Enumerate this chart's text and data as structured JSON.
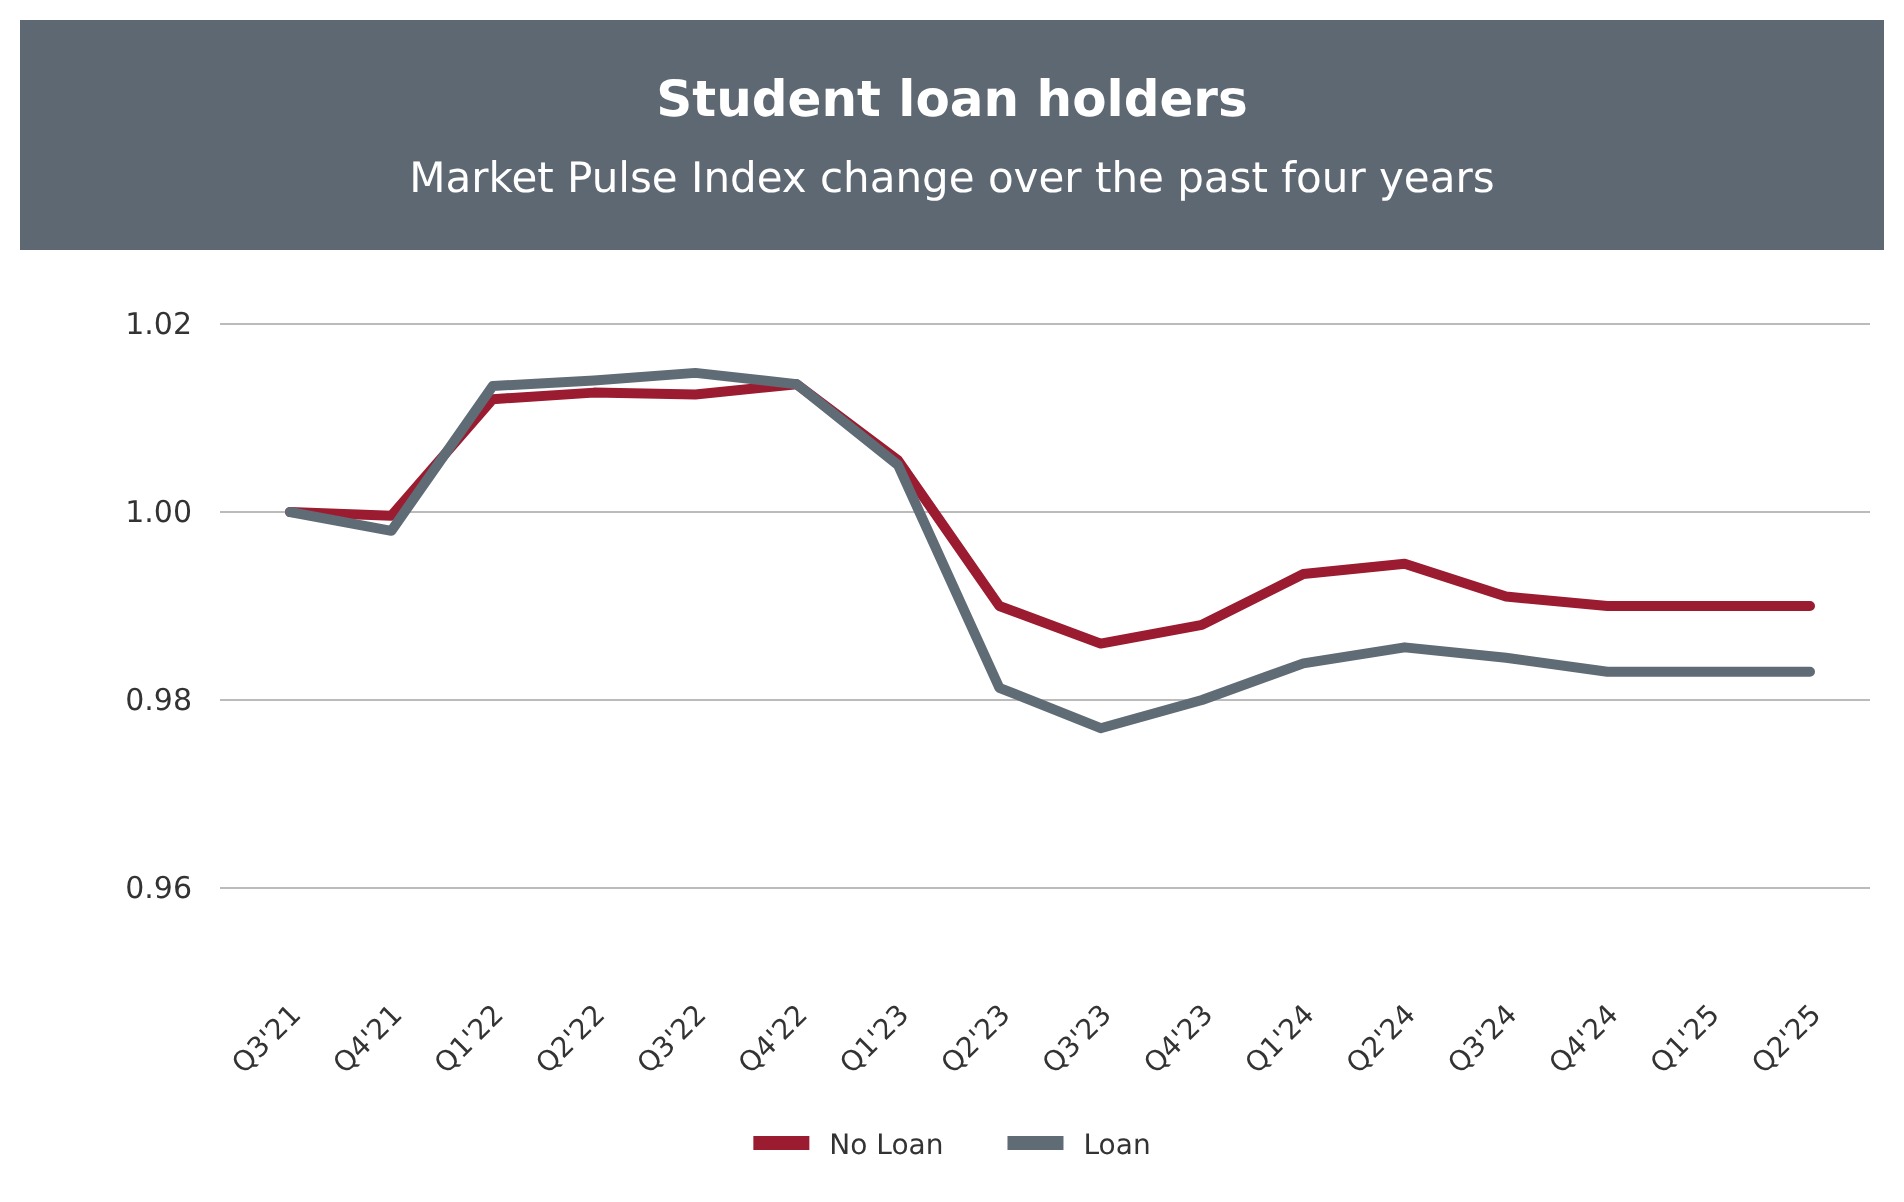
{
  "chart_data": {
    "type": "line",
    "title": "Student loan holders",
    "subtitle": "Market Pulse Index change over the past four years",
    "categories": [
      "Q3'21",
      "Q4'21",
      "Q1'22",
      "Q2'22",
      "Q3'22",
      "Q4'22",
      "Q1'23",
      "Q2'23",
      "Q3'23",
      "Q4'23",
      "Q1'24",
      "Q2'24",
      "Q3'24",
      "Q4'24",
      "Q1'25",
      "Q2'25"
    ],
    "series": [
      {
        "name": "No Loan",
        "color": "#9b1b30",
        "values": [
          1.0,
          0.9996,
          1.012,
          1.0127,
          1.0125,
          1.0136,
          1.0055,
          0.99,
          0.986,
          0.988,
          0.9934,
          0.9945,
          0.991,
          0.99,
          0.99,
          0.99
        ]
      },
      {
        "name": "Loan",
        "color": "#5f6b75",
        "values": [
          1.0,
          0.998,
          1.0134,
          1.014,
          1.0148,
          1.0136,
          1.005,
          0.9813,
          0.977,
          0.98,
          0.9839,
          0.9856,
          0.9845,
          0.983,
          0.983,
          0.983
        ]
      }
    ],
    "ylim": [
      0.96,
      1.02
    ],
    "yticks": [
      {
        "value": 0.96,
        "label": "0.96"
      },
      {
        "value": 0.98,
        "label": "0.98"
      },
      {
        "value": 1.0,
        "label": "1.00"
      },
      {
        "value": 1.02,
        "label": "1.02"
      }
    ],
    "grid": "y",
    "legend": "bottom",
    "line_style": "solid",
    "marker": "none"
  }
}
